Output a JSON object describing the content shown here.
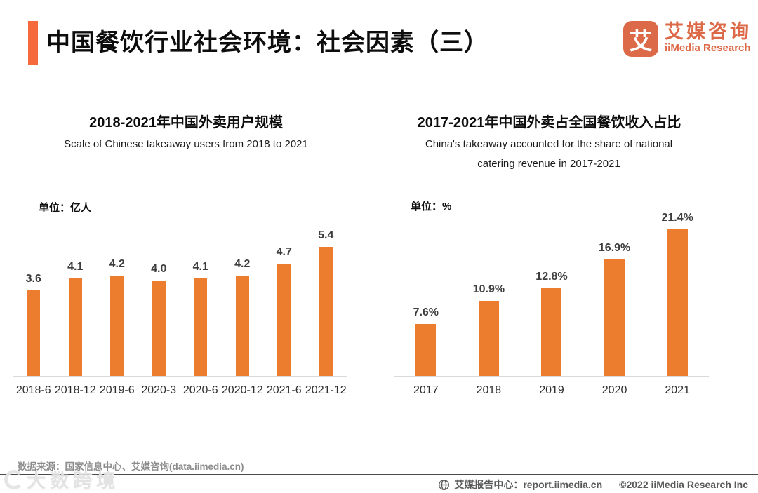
{
  "header": {
    "title": "中国餐饮行业社会环境：社会因素（三）",
    "logo": {
      "symbol": "艾",
      "name_cn": "艾媒咨询",
      "name_en": "iiMedia Research"
    }
  },
  "colors": {
    "accent": "#F5693D",
    "bar": "#EC7D2F",
    "logo": "#DC6A48"
  },
  "chart_data": [
    {
      "type": "bar",
      "title": "2018-2021年中国外卖用户规模",
      "subtitle": "Scale of Chinese takeaway users from 2018 to 2021",
      "unit_label": "单位：亿人",
      "unit": "亿人",
      "categories": [
        "2018-6",
        "2018-12",
        "2019-6",
        "2020-3",
        "2020-6",
        "2020-12",
        "2021-6",
        "2021-12"
      ],
      "values": [
        3.6,
        4.1,
        4.2,
        4.0,
        4.1,
        4.2,
        4.7,
        5.4
      ],
      "value_labels": [
        "3.6",
        "4.1",
        "4.2",
        "4.0",
        "4.1",
        "4.2",
        "4.7",
        "5.4"
      ],
      "xlabel": "",
      "ylabel": "亿人",
      "ylim": [
        0,
        6
      ],
      "grid": false,
      "legend": false,
      "bar_color": "#EC7D2F"
    },
    {
      "type": "bar",
      "title": "2017-2021年中国外卖占全国餐饮收入占比",
      "subtitle": "China's takeaway accounted for the share of national catering revenue in 2017-2021",
      "unit_label": "单位：%",
      "unit": "%",
      "categories": [
        "2017",
        "2018",
        "2019",
        "2020",
        "2021"
      ],
      "values": [
        7.6,
        10.9,
        12.8,
        16.9,
        21.4
      ],
      "value_labels": [
        "7.6%",
        "10.9%",
        "12.8%",
        "16.9%",
        "21.4%"
      ],
      "xlabel": "",
      "ylabel": "%",
      "ylim": [
        0,
        24
      ],
      "grid": false,
      "legend": false,
      "bar_color": "#EC7D2F"
    }
  ],
  "footer": {
    "source": "数据来源：国家信息中心、艾媒咨询(data.iimedia.cn)",
    "report_center": "艾媒报告中心：report.iimedia.cn",
    "copyright": "©2022  iiMedia Research Inc",
    "watermark": "大数跨境"
  }
}
